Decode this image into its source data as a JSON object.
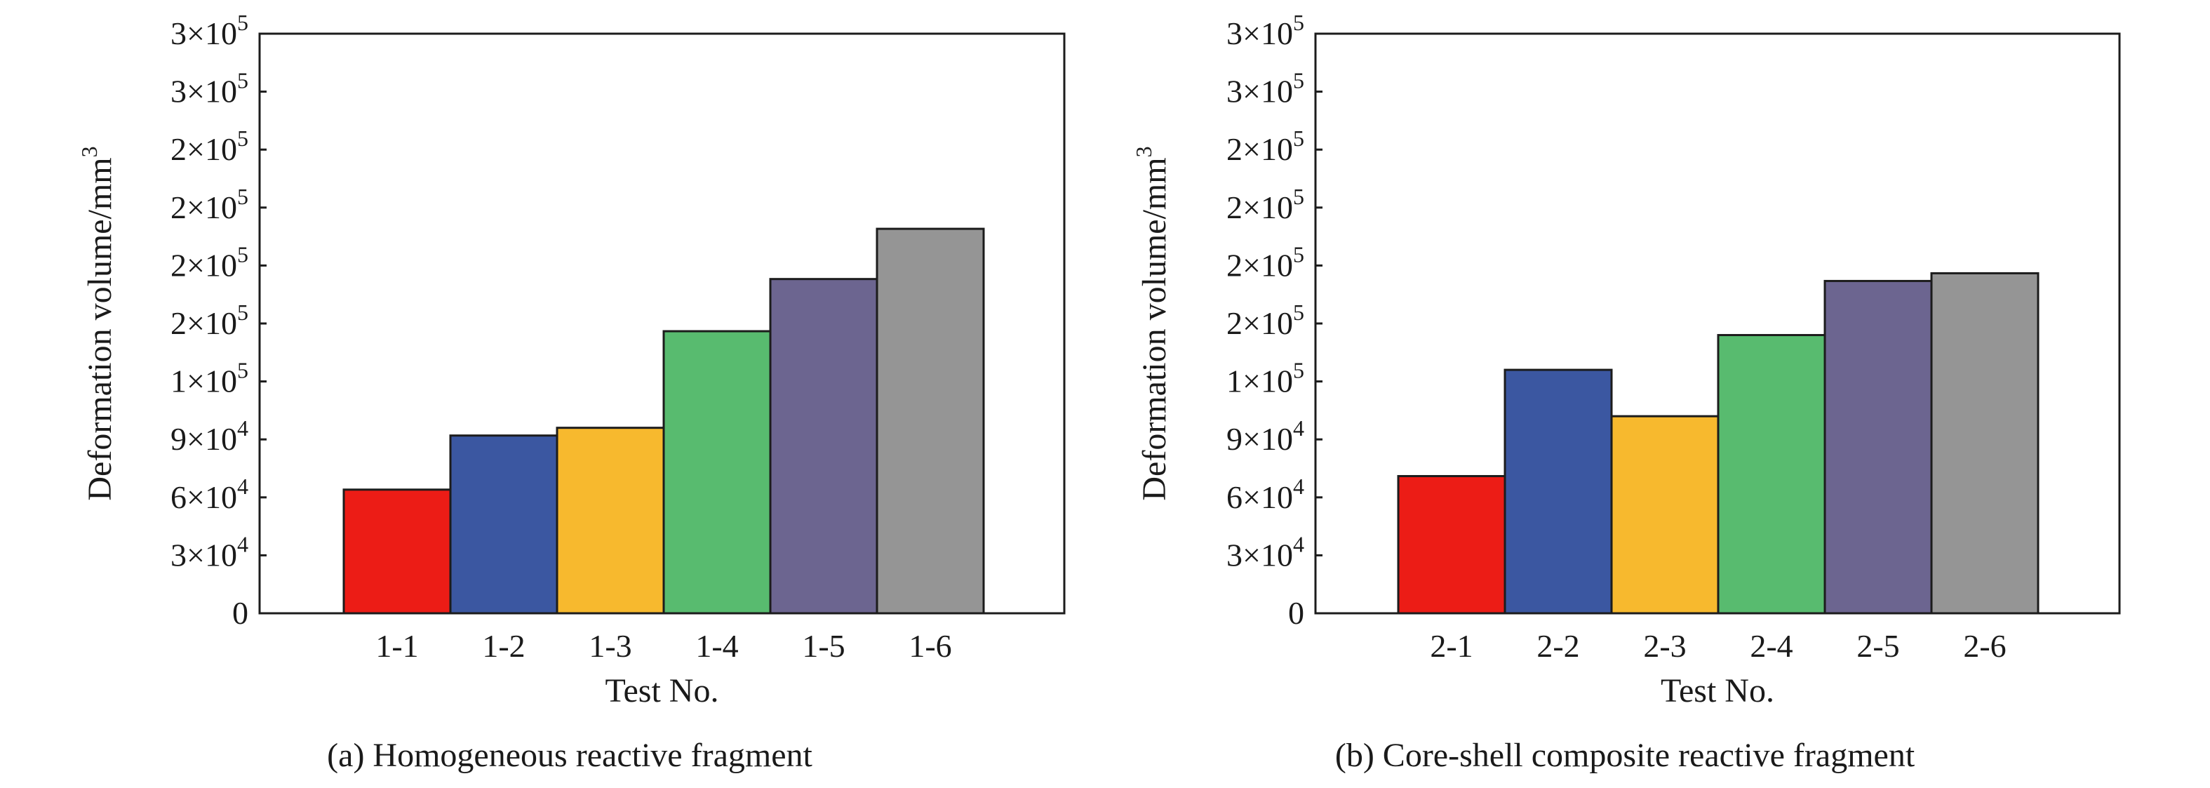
{
  "chart_data": [
    {
      "type": "bar",
      "caption": "(a) Homogeneous reactive fragment",
      "xlabel": "Test No.",
      "ylabel": "Deformation volume/mm³",
      "ylabel_base": "Deformation volume/mm",
      "ylabel_sup": "3",
      "categories": [
        "1-1",
        "1-2",
        "1-3",
        "1-4",
        "1-5",
        "1-6"
      ],
      "values": [
        64000,
        92000,
        96000,
        146000,
        173000,
        199000
      ],
      "colors": [
        "#ec1c16",
        "#3b57a1",
        "#f7b92e",
        "#58bb6f",
        "#6c6590",
        "#959595"
      ],
      "ylim": [
        0,
        300000
      ],
      "ytick_values": [
        0,
        30000,
        60000,
        90000,
        120000,
        150000,
        180000,
        210000,
        240000,
        270000,
        300000
      ],
      "ytick_labels": [
        {
          "mantissa": "0",
          "exp": ""
        },
        {
          "mantissa": "3×10",
          "exp": "4"
        },
        {
          "mantissa": "6×10",
          "exp": "4"
        },
        {
          "mantissa": "9×10",
          "exp": "4"
        },
        {
          "mantissa": "1×10",
          "exp": "5"
        },
        {
          "mantissa": "2×10",
          "exp": "5"
        },
        {
          "mantissa": "2×10",
          "exp": "5"
        },
        {
          "mantissa": "2×10",
          "exp": "5"
        },
        {
          "mantissa": "2×10",
          "exp": "5"
        },
        {
          "mantissa": "3×10",
          "exp": "5"
        },
        {
          "mantissa": "3×10",
          "exp": "5"
        }
      ],
      "grid": false,
      "legend": "none"
    },
    {
      "type": "bar",
      "caption": "(b) Core-shell composite reactive fragment",
      "xlabel": "Test No.",
      "ylabel": "Deformation volume/mm³",
      "ylabel_base": "Deformation volume/mm",
      "ylabel_sup": "3",
      "categories": [
        "2-1",
        "2-2",
        "2-3",
        "2-4",
        "2-5",
        "2-6"
      ],
      "values": [
        71000,
        126000,
        102000,
        144000,
        172000,
        176000
      ],
      "colors": [
        "#ec1c16",
        "#3b57a1",
        "#f7b92e",
        "#58bb6f",
        "#6c6590",
        "#959595"
      ],
      "ylim": [
        0,
        300000
      ],
      "ytick_values": [
        0,
        30000,
        60000,
        90000,
        120000,
        150000,
        180000,
        210000,
        240000,
        270000,
        300000
      ],
      "ytick_labels": [
        {
          "mantissa": "0",
          "exp": ""
        },
        {
          "mantissa": "3×10",
          "exp": "4"
        },
        {
          "mantissa": "6×10",
          "exp": "4"
        },
        {
          "mantissa": "9×10",
          "exp": "4"
        },
        {
          "mantissa": "1×10",
          "exp": "5"
        },
        {
          "mantissa": "2×10",
          "exp": "5"
        },
        {
          "mantissa": "2×10",
          "exp": "5"
        },
        {
          "mantissa": "2×10",
          "exp": "5"
        },
        {
          "mantissa": "2×10",
          "exp": "5"
        },
        {
          "mantissa": "3×10",
          "exp": "5"
        },
        {
          "mantissa": "3×10",
          "exp": "5"
        }
      ],
      "grid": false,
      "legend": "none"
    }
  ]
}
